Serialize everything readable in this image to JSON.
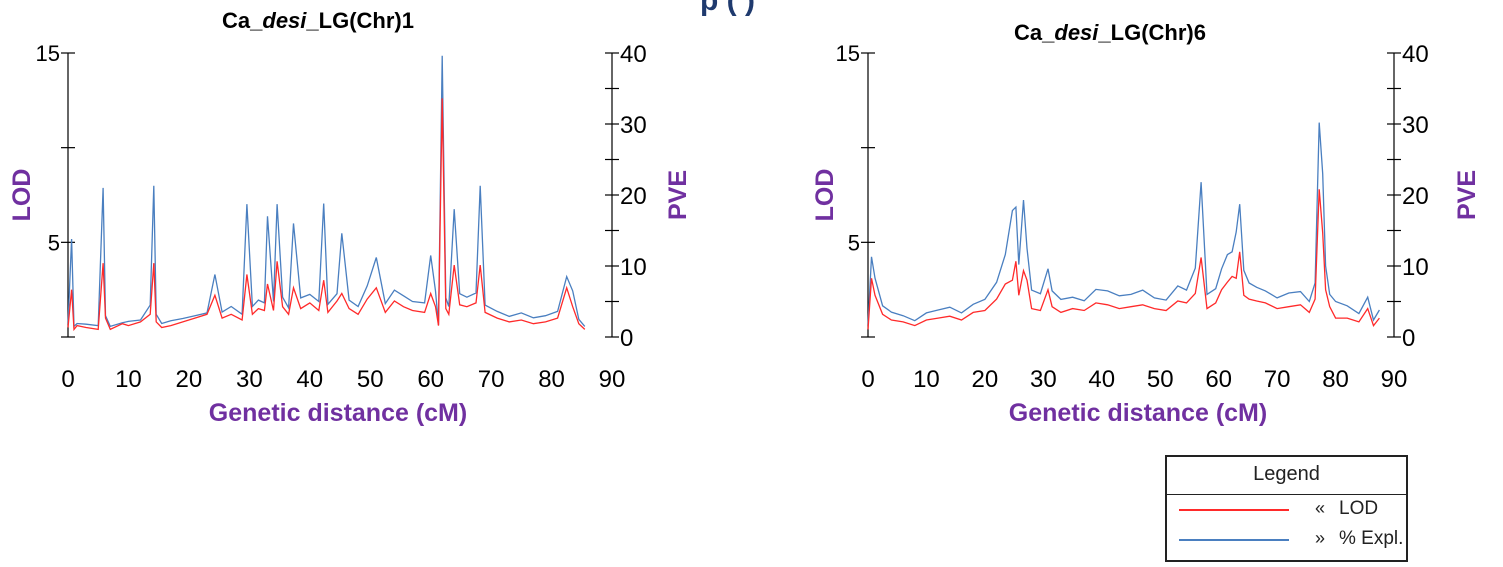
{
  "header_fragment": "p (     )",
  "colors": {
    "lod": "#ff2a2a",
    "pve": "#4a7fc0",
    "axis_title": "#7030a0"
  },
  "chart_data": [
    {
      "type": "line",
      "title_parts": [
        "Ca_",
        "desi",
        "_LG(Chr)1"
      ],
      "xlabel": "Genetic distance (cM)",
      "ylabel_left": "LOD",
      "ylabel_right": "PVE",
      "x_ticks": [
        "0",
        "10",
        "20",
        "30",
        "40",
        "50",
        "60",
        "70",
        "80",
        "90"
      ],
      "y_left_ticks": [
        "15",
        "5"
      ],
      "y_right_ticks": [
        "40",
        "30",
        "20",
        "10",
        "0"
      ],
      "xlim": [
        0,
        90
      ],
      "ylim_left": [
        0,
        15
      ],
      "ylim_right": [
        0,
        40
      ],
      "grid": false,
      "series": [
        {
          "name": "LOD",
          "axis": "left",
          "x": [
            0.0,
            0.6,
            1.0,
            1.5,
            3.0,
            5.0,
            5.8,
            6.2,
            7.0,
            9.0,
            10.0,
            12.0,
            13.6,
            14.2,
            14.6,
            15.5,
            17.0,
            19.0,
            21.0,
            23.0,
            24.3,
            25.5,
            27.0,
            28.8,
            29.6,
            30.5,
            31.5,
            32.5,
            33.0,
            34.0,
            34.6,
            35.5,
            36.5,
            37.3,
            38.5,
            40.0,
            41.5,
            42.3,
            43.0,
            44.5,
            45.3,
            46.5,
            48.0,
            49.5,
            51.0,
            52.5,
            54.0,
            55.5,
            57.0,
            59.0,
            60.0,
            60.8,
            61.3,
            61.9,
            62.5,
            63.0,
            63.9,
            64.8,
            66.0,
            67.5,
            68.2,
            69.0,
            71.0,
            73.0,
            75.0,
            77.0,
            79.0,
            81.0,
            82.5,
            83.5,
            84.5,
            85.5
          ],
          "y": [
            0.5,
            2.5,
            0.4,
            0.6,
            0.5,
            0.4,
            3.9,
            1.0,
            0.4,
            0.7,
            0.6,
            0.8,
            1.2,
            3.9,
            0.8,
            0.5,
            0.6,
            0.8,
            1.0,
            1.2,
            2.2,
            1.0,
            1.2,
            0.9,
            3.3,
            1.2,
            1.5,
            1.4,
            2.8,
            1.4,
            4.0,
            1.6,
            1.2,
            2.6,
            1.5,
            1.8,
            1.4,
            3.0,
            1.3,
            1.9,
            2.3,
            1.5,
            1.2,
            2.0,
            2.6,
            1.3,
            1.9,
            1.6,
            1.4,
            1.3,
            2.3,
            1.6,
            0.6,
            12.6,
            1.5,
            1.2,
            3.8,
            1.7,
            1.6,
            1.8,
            3.8,
            1.3,
            1.0,
            0.8,
            0.9,
            0.7,
            0.8,
            1.0,
            2.6,
            1.6,
            0.7,
            0.4
          ]
        },
        {
          "name": "% Expl.",
          "axis": "right",
          "x": [
            0.0,
            0.6,
            1.0,
            1.5,
            3.0,
            5.0,
            5.8,
            6.2,
            7.0,
            9.0,
            10.0,
            12.0,
            13.6,
            14.2,
            14.6,
            15.5,
            17.0,
            19.0,
            21.0,
            23.0,
            24.3,
            25.5,
            27.0,
            28.8,
            29.6,
            30.5,
            31.5,
            32.5,
            33.0,
            34.0,
            34.6,
            35.5,
            36.5,
            37.3,
            38.5,
            40.0,
            41.5,
            42.3,
            43.0,
            44.5,
            45.3,
            46.5,
            48.0,
            49.5,
            51.0,
            52.5,
            54.0,
            55.5,
            57.0,
            59.0,
            60.0,
            60.8,
            61.3,
            61.9,
            62.5,
            63.0,
            63.9,
            64.8,
            66.0,
            67.5,
            68.2,
            69.0,
            71.0,
            73.0,
            75.0,
            77.0,
            79.0,
            81.0,
            82.5,
            83.5,
            84.5,
            85.5
          ],
          "y": [
            1.8,
            13.8,
            1.5,
            1.9,
            1.8,
            1.6,
            21.0,
            3.0,
            1.5,
            2.0,
            2.2,
            2.4,
            4.5,
            21.3,
            3.2,
            1.9,
            2.3,
            2.6,
            3.0,
            3.4,
            8.8,
            3.5,
            4.3,
            3.2,
            18.7,
            4.3,
            5.2,
            4.8,
            17.0,
            5.0,
            18.7,
            5.6,
            4.1,
            16.0,
            5.5,
            6.0,
            5.0,
            18.8,
            4.6,
            6.1,
            14.6,
            5.2,
            4.3,
            7.2,
            11.2,
            4.7,
            6.6,
            5.8,
            5.0,
            4.8,
            11.5,
            6.5,
            1.7,
            39.6,
            5.5,
            4.3,
            18.0,
            6.1,
            5.6,
            6.2,
            21.3,
            4.5,
            3.6,
            2.9,
            3.4,
            2.7,
            3.0,
            3.6,
            8.5,
            6.5,
            2.5,
            1.5
          ]
        }
      ]
    },
    {
      "type": "line",
      "title_parts": [
        "Ca_",
        "desi",
        "_LG(Chr)6"
      ],
      "xlabel": "Genetic distance (cM)",
      "ylabel_left": "LOD",
      "ylabel_right": "PVE",
      "x_ticks": [
        "0",
        "10",
        "20",
        "30",
        "40",
        "50",
        "60",
        "70",
        "80",
        "90"
      ],
      "y_left_ticks": [
        "15",
        "5"
      ],
      "y_right_ticks": [
        "40",
        "30",
        "20",
        "10",
        "0"
      ],
      "xlim": [
        0,
        90
      ],
      "ylim_left": [
        0,
        15
      ],
      "ylim_right": [
        0,
        40
      ],
      "grid": false,
      "series": [
        {
          "name": "LOD",
          "axis": "left",
          "x": [
            0.0,
            0.6,
            1.2,
            2.5,
            4.0,
            6.0,
            8.0,
            10.0,
            12.0,
            14.0,
            16.0,
            18.0,
            20.0,
            22.0,
            23.5,
            24.7,
            25.3,
            25.8,
            26.6,
            27.2,
            28.0,
            29.5,
            30.8,
            31.5,
            33.0,
            35.0,
            37.0,
            39.0,
            41.0,
            43.0,
            45.0,
            47.0,
            49.0,
            51.0,
            53.0,
            54.5,
            56.0,
            57.0,
            58.0,
            59.5,
            60.5,
            61.5,
            62.3,
            63.0,
            63.6,
            64.3,
            65.2,
            66.5,
            68.0,
            70.0,
            72.0,
            74.0,
            75.5,
            76.5,
            77.2,
            77.8,
            78.3,
            79.0,
            80.0,
            82.0,
            84.0,
            85.5,
            86.5,
            87.5
          ],
          "y": [
            0.4,
            3.1,
            2.2,
            1.2,
            0.9,
            0.8,
            0.6,
            0.9,
            1.0,
            1.1,
            0.9,
            1.3,
            1.4,
            2.0,
            2.8,
            3.0,
            4.0,
            2.2,
            3.5,
            3.0,
            1.5,
            1.4,
            2.5,
            1.6,
            1.3,
            1.5,
            1.4,
            1.8,
            1.7,
            1.5,
            1.6,
            1.7,
            1.5,
            1.4,
            1.9,
            1.8,
            2.3,
            4.2,
            1.5,
            1.8,
            2.5,
            2.9,
            3.2,
            3.1,
            4.5,
            2.2,
            2.0,
            1.9,
            1.8,
            1.5,
            1.6,
            1.7,
            1.3,
            2.0,
            7.8,
            5.5,
            2.5,
            1.6,
            1.0,
            1.0,
            0.8,
            1.5,
            0.6,
            1.0
          ]
        },
        {
          "name": "% Expl.",
          "axis": "right",
          "x": [
            0.0,
            0.6,
            1.2,
            2.5,
            4.0,
            6.0,
            8.0,
            10.0,
            12.0,
            14.0,
            16.0,
            18.0,
            20.0,
            22.0,
            23.5,
            24.7,
            25.3,
            25.8,
            26.6,
            27.2,
            28.0,
            29.5,
            30.8,
            31.5,
            33.0,
            35.0,
            37.0,
            39.0,
            41.0,
            43.0,
            45.0,
            47.0,
            49.0,
            51.0,
            53.0,
            54.5,
            56.0,
            57.0,
            58.0,
            59.5,
            60.5,
            61.5,
            62.3,
            63.0,
            63.6,
            64.3,
            65.2,
            66.5,
            68.0,
            70.0,
            72.0,
            74.0,
            75.5,
            76.5,
            77.2,
            77.8,
            78.3,
            79.0,
            80.0,
            82.0,
            84.0,
            85.5,
            86.5,
            87.5
          ],
          "y": [
            1.7,
            11.3,
            8.3,
            4.4,
            3.5,
            3.0,
            2.3,
            3.4,
            3.8,
            4.2,
            3.4,
            4.6,
            5.3,
            7.7,
            11.6,
            17.8,
            18.3,
            10.2,
            19.3,
            12.5,
            6.6,
            6.1,
            9.6,
            6.5,
            5.3,
            5.6,
            5.1,
            6.7,
            6.5,
            5.8,
            6.0,
            6.6,
            5.5,
            5.2,
            7.2,
            6.6,
            9.7,
            21.8,
            6.0,
            6.8,
            9.6,
            11.6,
            12.0,
            14.8,
            18.7,
            9.4,
            7.6,
            7.0,
            6.5,
            5.5,
            6.2,
            6.4,
            5.0,
            7.6,
            30.2,
            23.0,
            10.0,
            6.0,
            5.0,
            4.4,
            3.3,
            5.6,
            2.4,
            3.8
          ]
        }
      ]
    }
  ],
  "legend": {
    "title": "Legend",
    "items": [
      {
        "symbol": "«",
        "label": "LOD"
      },
      {
        "symbol": "»",
        "label": "% Expl."
      }
    ]
  }
}
